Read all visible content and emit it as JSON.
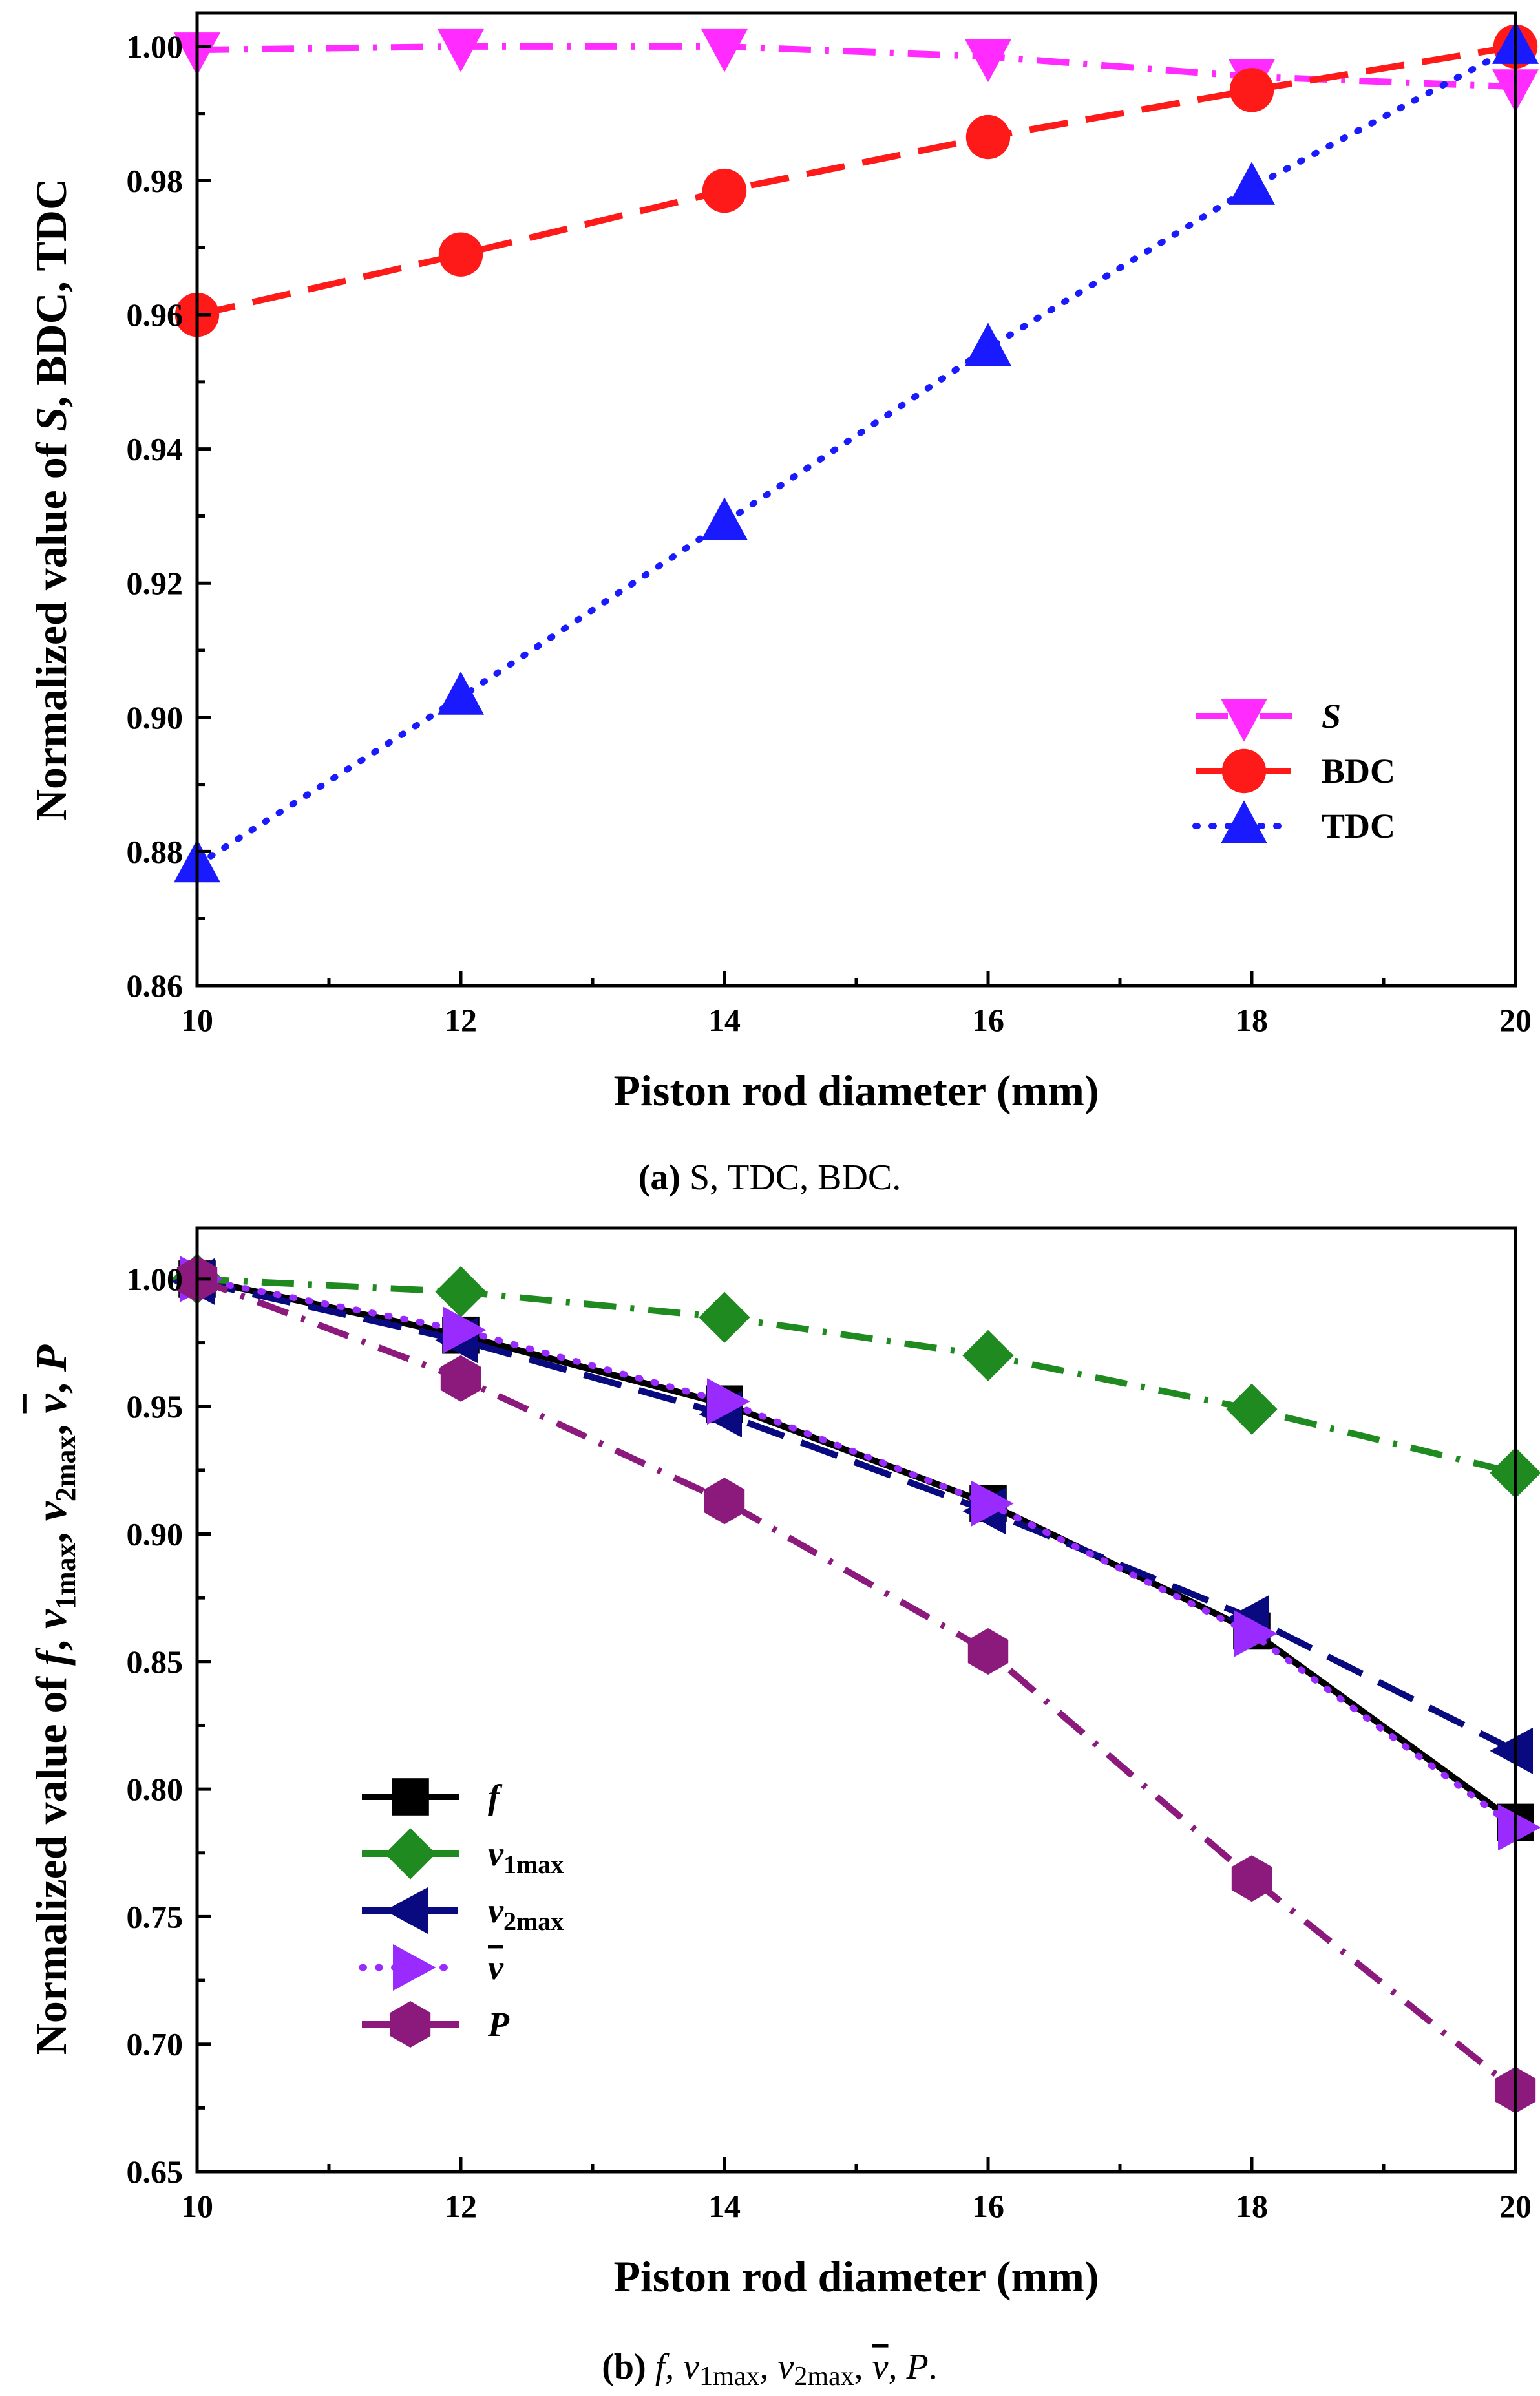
{
  "chart_data": [
    {
      "type": "line",
      "panel": "a",
      "caption": {
        "label": "(a)",
        "text": "S, TDC, BDC."
      },
      "xlabel": "Piston rod diameter (mm)",
      "ylabel": "Normalized value of S, BDC, TDC",
      "ylabel_parts": [
        "Normalized value of ",
        "S",
        ", BDC, TDC"
      ],
      "xlim": [
        10,
        20
      ],
      "ylim": [
        0.86,
        1.005
      ],
      "xticks": [
        "10",
        "12",
        "14",
        "16",
        "18",
        "20"
      ],
      "yticks": [
        "0.86",
        "0.88",
        "0.90",
        "0.92",
        "0.94",
        "0.96",
        "0.98",
        "1.00"
      ],
      "x": [
        10,
        12,
        14,
        16,
        18,
        20
      ],
      "legend_position": "lower-right",
      "series": [
        {
          "name": "S",
          "italic": true,
          "color": "#ff2bff",
          "marker": "triangle-down",
          "dash": "dashdot",
          "values": [
            0.9995,
            1.0,
            1.0,
            0.9985,
            0.9955,
            0.994
          ]
        },
        {
          "name": "BDC",
          "italic": false,
          "color": "#ff1a1a",
          "marker": "circle",
          "dash": "dash",
          "values": [
            0.96,
            0.969,
            0.9785,
            0.9865,
            0.9935,
            1.0
          ]
        },
        {
          "name": "TDC",
          "italic": false,
          "color": "#1a1aff",
          "marker": "triangle-up",
          "dash": "dot",
          "values": [
            0.878,
            0.903,
            0.929,
            0.955,
            0.979,
            1.0
          ]
        }
      ]
    },
    {
      "type": "line",
      "panel": "b",
      "caption": {
        "label": "(b)",
        "text": "f, v1max, v2max, v, P."
      },
      "caption_parts": [
        "f",
        ", ",
        "v",
        "1max",
        ", ",
        "v",
        "2max",
        ", ",
        "v",
        ", ",
        "P",
        "."
      ],
      "xlabel": "Piston rod diameter (mm)",
      "ylabel": "Normalized value of f, v1max, v2max, v, P",
      "ylabel_parts": [
        "Normalized value of ",
        "f",
        ", ",
        "v",
        "1max",
        ", ",
        "v",
        "2max",
        ", ",
        "v",
        ", ",
        "P"
      ],
      "xlim": [
        10,
        20
      ],
      "ylim": [
        0.65,
        1.02
      ],
      "xticks": [
        "10",
        "12",
        "14",
        "16",
        "18",
        "20"
      ],
      "yticks": [
        "0.65",
        "0.70",
        "0.75",
        "0.80",
        "0.85",
        "0.90",
        "0.95",
        "1.00"
      ],
      "x": [
        10,
        12,
        14,
        16,
        18,
        20
      ],
      "legend_position": "lower-left",
      "series": [
        {
          "name": "f",
          "sub": "",
          "italic": true,
          "color": "#000000",
          "marker": "square",
          "dash": "solid",
          "values": [
            1.0,
            0.978,
            0.951,
            0.912,
            0.862,
            0.787
          ]
        },
        {
          "name": "v",
          "sub": "1max",
          "italic": true,
          "color": "#1f8a1f",
          "marker": "diamond",
          "dash": "dashdot",
          "values": [
            1.0,
            0.995,
            0.985,
            0.97,
            0.949,
            0.924
          ]
        },
        {
          "name": "v",
          "sub": "2max",
          "italic": true,
          "color": "#0a0a80",
          "marker": "triangle-left",
          "dash": "dash",
          "values": [
            0.999,
            0.976,
            0.947,
            0.909,
            0.867,
            0.815
          ]
        },
        {
          "name": "v",
          "sub": "",
          "overline": true,
          "italic": true,
          "color": "#9a2bff",
          "marker": "triangle-right",
          "dash": "dot",
          "values": [
            1.0,
            0.98,
            0.952,
            0.912,
            0.861,
            0.785
          ]
        },
        {
          "name": "P",
          "sub": "",
          "italic": true,
          "color": "#8c1a7d",
          "marker": "hexagon",
          "dash": "dashdot",
          "values": [
            1.0,
            0.961,
            0.913,
            0.854,
            0.765,
            0.682
          ]
        }
      ]
    }
  ]
}
